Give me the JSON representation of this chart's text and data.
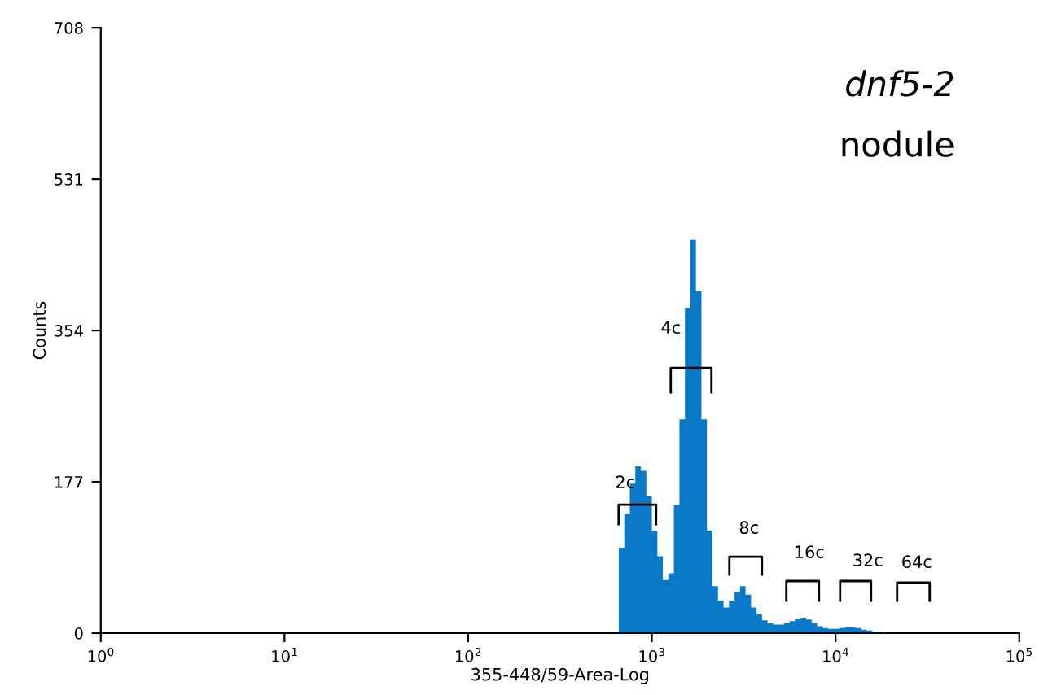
{
  "chart_data": {
    "type": "histogram",
    "title": "dnf5-2",
    "subtitle": "nodule",
    "xlabel": "355-448/59-Area-Log",
    "ylabel": "Counts",
    "log": "x",
    "color": "#0a7ac8",
    "xlim": [
      1,
      100000
    ],
    "xticks": [
      {
        "value": 1,
        "label": "10$^{0}$"
      },
      {
        "value": 10,
        "label": "10$^{1}$"
      },
      {
        "value": 100,
        "label": "10$^{2}$"
      },
      {
        "value": 1000,
        "label": "10$^{3}$"
      },
      {
        "value": 10000,
        "label": "10$^{4}$"
      },
      {
        "value": 100000,
        "label": "10$^{5}$"
      }
    ],
    "ylim": [
      0,
      708
    ],
    "yticks": [
      0,
      177,
      354,
      531,
      708
    ],
    "grid": false,
    "legend": false,
    "bins": [
      660.7,
      707.9,
      758.6,
      812.8,
      871.0,
      933.3,
      1000,
      1072,
      1148,
      1230,
      1318,
      1413,
      1514,
      1622,
      1738,
      1862,
      1995,
      2138,
      2291,
      2455,
      2630,
      2818,
      3020,
      3236,
      3467,
      3715,
      3981,
      4266,
      4571,
      4898,
      5248,
      5623,
      6026,
      6457,
      6918,
      7413,
      7943,
      8511,
      9120,
      9772,
      10470,
      11220,
      12020,
      12880,
      13800,
      14790,
      15850,
      16980,
      18200,
      19500,
      20890,
      22390,
      23990,
      25700,
      27540
    ],
    "values": [
      100,
      140,
      175,
      195,
      190,
      160,
      120,
      90,
      62,
      70,
      150,
      250,
      380,
      460,
      400,
      250,
      120,
      55,
      38,
      30,
      38,
      48,
      55,
      45,
      30,
      22,
      15,
      12,
      10,
      10,
      12,
      14,
      17,
      18,
      16,
      12,
      8,
      6,
      5,
      5,
      6,
      7,
      7,
      6,
      4,
      3,
      2,
      2,
      1,
      1,
      1,
      0,
      1,
      0
    ],
    "annotations": [
      "2c",
      "4c",
      "8c",
      "16c",
      "32c",
      "64c"
    ]
  }
}
